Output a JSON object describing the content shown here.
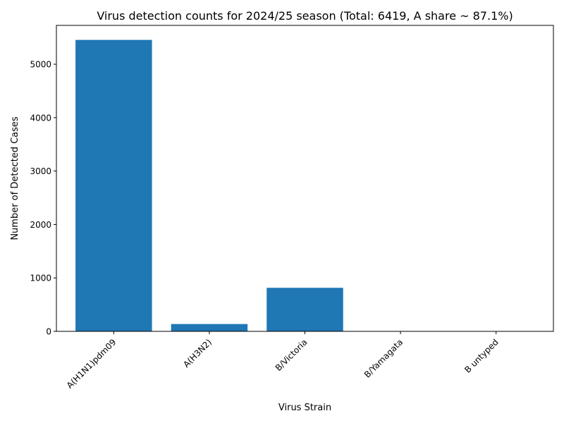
{
  "chart_data": {
    "type": "bar",
    "title": "Virus detection counts for 2024/25 season (Total: 6419, A share ~ 87.1%)",
    "xlabel": "Virus Strain",
    "ylabel": "Number of Detected Cases",
    "categories": [
      "A(H1N1)pdm09",
      "A(H3N2)",
      "B/Victoria",
      "B/Yamagata",
      "B untyped"
    ],
    "values": [
      5455,
      137,
      815,
      6,
      6
    ],
    "ylim": [
      0,
      5727
    ],
    "yticks": [
      0,
      1000,
      2000,
      3000,
      4000,
      5000
    ],
    "ytick_labels": [
      "0",
      "1000",
      "2000",
      "3000",
      "4000",
      "5000"
    ],
    "bar_color": "#1f77b4",
    "grid": false,
    "legend": "none"
  }
}
